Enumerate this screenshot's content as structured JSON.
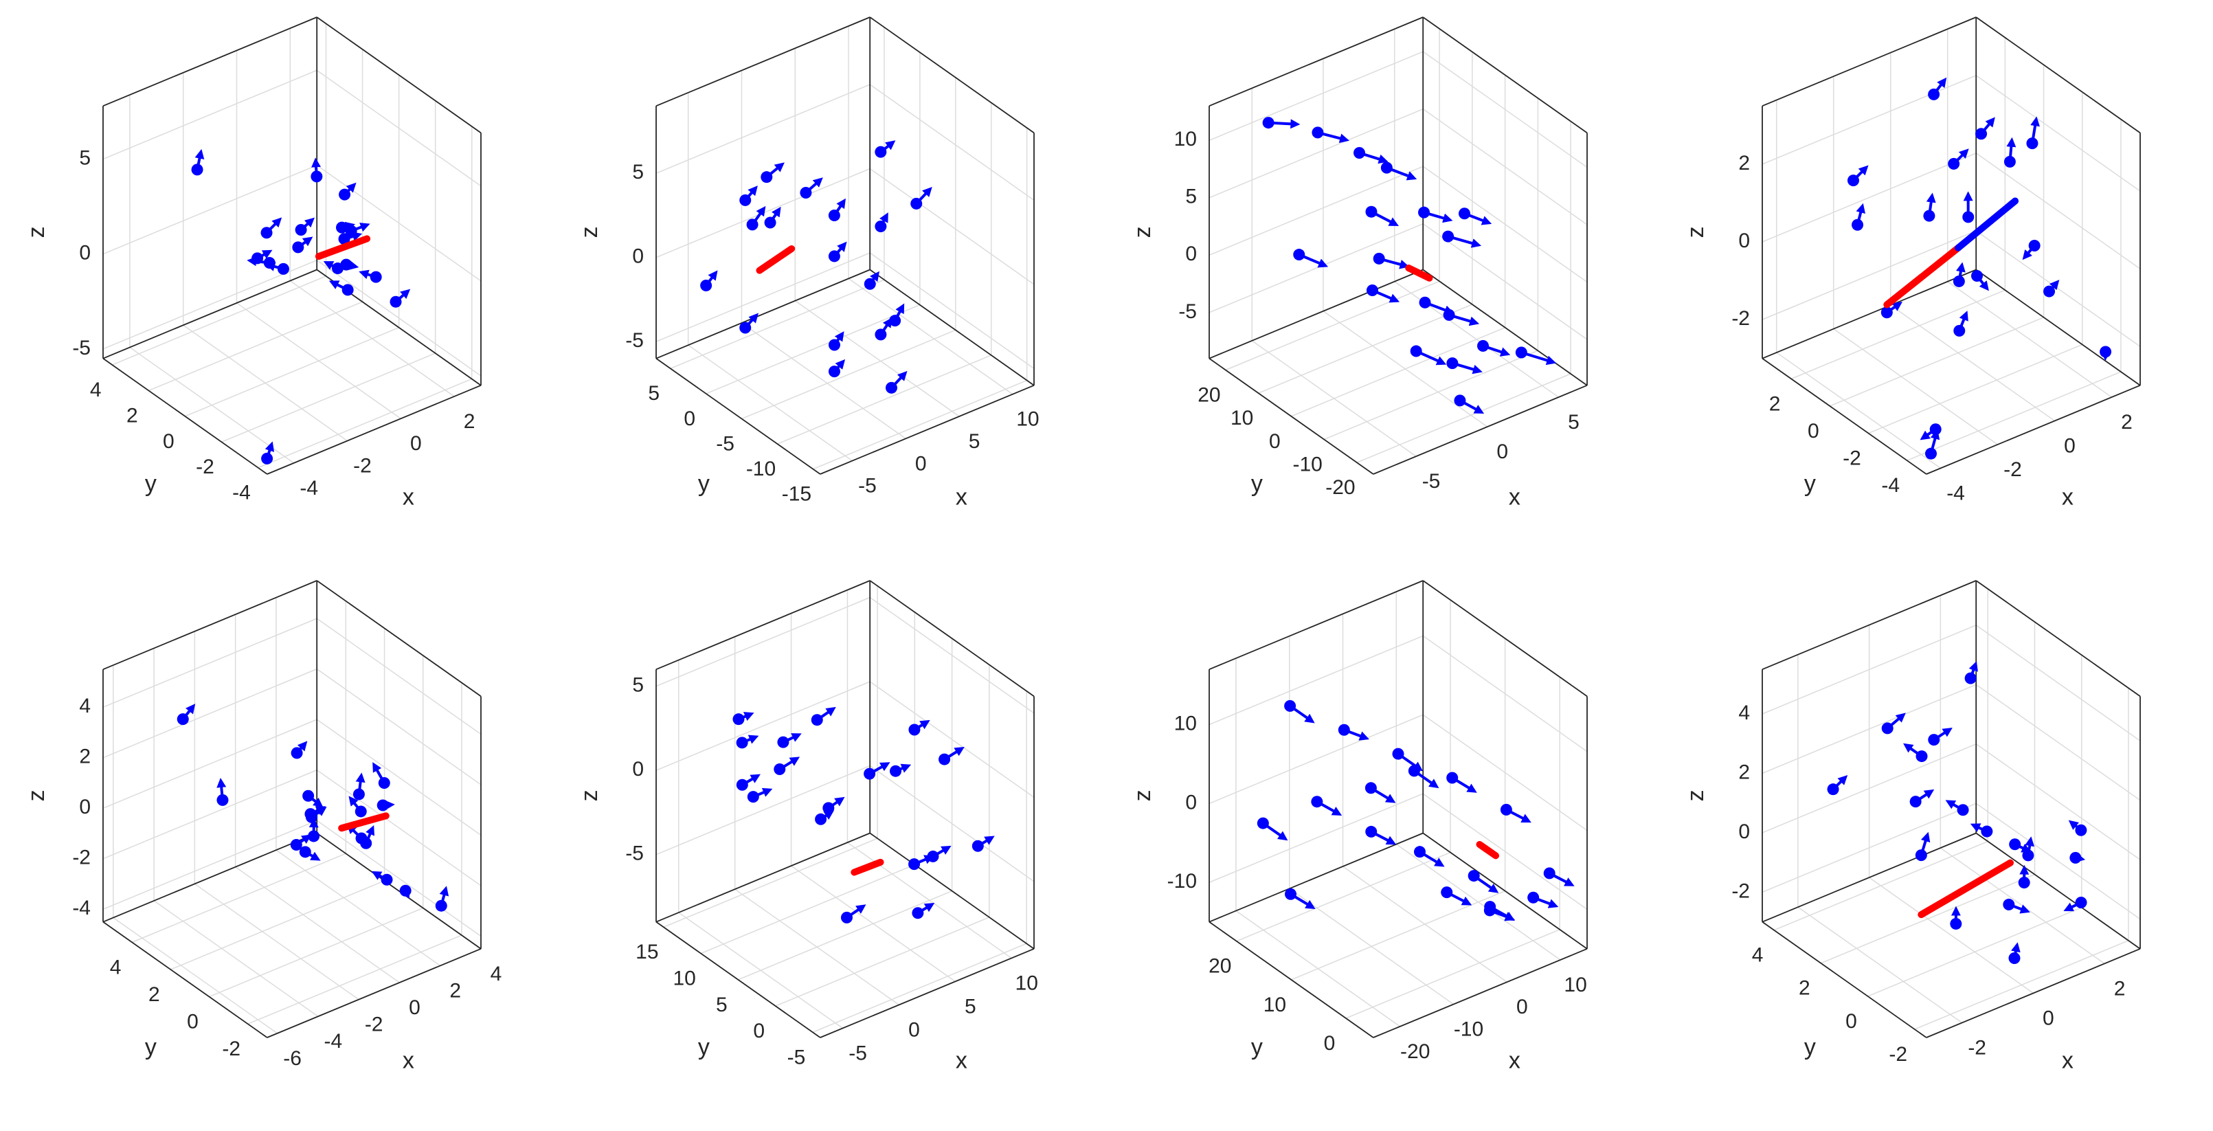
{
  "chart_data": [
    {
      "type": "quiver3d",
      "xlabel": "x",
      "ylabel": "y",
      "zlabel": "z",
      "color": "#0000ff",
      "grid": true,
      "xlim": [
        -5,
        3
      ],
      "ylim": [
        -4.5,
        4.5
      ],
      "zlim": [
        -5.5,
        7.8
      ],
      "xticks": [
        -4,
        -2,
        0,
        2
      ],
      "yticks": [
        -4,
        -2,
        0,
        2,
        4
      ],
      "zticks": [
        -5,
        0,
        5
      ],
      "x": [
        -0.5,
        0.3,
        -1.2,
        1.0,
        0.2,
        -0.8,
        1.5,
        -0.3,
        0.6,
        -1.5,
        0.9,
        -0.2,
        1.8,
        -1.0,
        0.4,
        -2.5,
        2.2,
        -4.8
      ],
      "y": [
        0.4,
        -0.6,
        1.1,
        0.2,
        -1.3,
        -0.2,
        0.8,
        1.5,
        -0.9,
        0.5,
        -0.1,
        -1.8,
        -0.5,
        1.9,
        0.7,
        3.0,
        -1.0,
        -4.2
      ],
      "z": [
        0.5,
        -0.4,
        1.2,
        0.8,
        -1.0,
        2.0,
        -0.5,
        -1.5,
        1.6,
        0.2,
        2.8,
        0.9,
        -1.8,
        -0.8,
        3.5,
        4.0,
        -3.0,
        -5.0
      ],
      "u": [
        0.3,
        -0.2,
        0.4,
        0.5,
        -0.3,
        0.2,
        0.6,
        -0.4,
        0.3,
        -0.5,
        0.2,
        0.4,
        -0.3,
        0.3,
        0.1,
        0.2,
        0.3,
        0.3
      ],
      "v": [
        -0.2,
        0.3,
        -0.1,
        0.2,
        0.4,
        -0.3,
        0.1,
        0.2,
        -0.4,
        0.3,
        -0.2,
        0.1,
        0.3,
        -0.2,
        0.2,
        0.1,
        -0.2,
        0.2
      ],
      "w": [
        0.4,
        0.2,
        0.5,
        -0.3,
        0.3,
        0.6,
        -0.2,
        0.3,
        0.4,
        0.2,
        0.5,
        -0.4,
        0.2,
        0.3,
        0.6,
        0.7,
        0.5,
        0.4
      ],
      "segments": [
        {
          "color": "#ff0000",
          "x": [
            0,
            1.6
          ],
          "y": [
            0,
            -0.3
          ],
          "z": [
            0,
            0.2
          ]
        }
      ]
    },
    {
      "type": "quiver3d",
      "xlabel": "x",
      "ylabel": "y",
      "zlabel": "z",
      "color": "#0000ff",
      "grid": true,
      "xlim": [
        -8,
        12
      ],
      "ylim": [
        -16,
        7
      ],
      "zlim": [
        -6,
        9
      ],
      "xticks": [
        -5,
        0,
        5,
        10
      ],
      "yticks": [
        -15,
        -10,
        -5,
        0,
        5
      ],
      "zticks": [
        -5,
        0,
        5
      ],
      "x": [
        -4,
        2,
        5,
        -1,
        7,
        3,
        -3,
        0,
        6,
        9,
        -2,
        4,
        1,
        8,
        -5,
        2,
        5,
        -6
      ],
      "y": [
        -3,
        1,
        -5,
        4,
        -2,
        -8,
        2,
        -6,
        3,
        -4,
        -9,
        0,
        5,
        1,
        -1,
        -11,
        -7,
        3
      ],
      "z": [
        4,
        3,
        2,
        1,
        5,
        -3,
        -4,
        -5,
        0,
        2,
        -2,
        -1,
        3,
        -4,
        5,
        -5,
        -3,
        -1
      ],
      "u": [
        1.0,
        1.2,
        0.8,
        1.1,
        0.9,
        1.0,
        1.2,
        0.7,
        1.0,
        1.1,
        0.9,
        1.0,
        1.2,
        0.8,
        1.0,
        1.1,
        0.9,
        1.0
      ],
      "v": [
        0.3,
        -0.2,
        0.4,
        0.1,
        -0.3,
        0.2,
        0.3,
        -0.1,
        0.2,
        -0.2,
        0.3,
        0.1,
        -0.3,
        0.2,
        0.1,
        -0.2,
        0.3,
        0.2
      ],
      "w": [
        0.4,
        0.5,
        0.3,
        0.6,
        0.4,
        0.5,
        0.3,
        0.4,
        0.5,
        0.6,
        0.3,
        0.4,
        0.5,
        0.3,
        0.4,
        0.6,
        0.5,
        0.4
      ],
      "segments": [
        {
          "color": "#ff0000",
          "x": [
            -3,
            0
          ],
          "y": [
            0,
            0
          ],
          "z": [
            0,
            0.5
          ]
        }
      ]
    },
    {
      "type": "quiver3d",
      "xlabel": "x",
      "ylabel": "y",
      "zlabel": "z",
      "color": "#0000ff",
      "grid": true,
      "xlim": [
        -8,
        7
      ],
      "ylim": [
        -25,
        25
      ],
      "zlim": [
        -9,
        13
      ],
      "xticks": [
        -5,
        0,
        5
      ],
      "yticks": [
        -20,
        -10,
        0,
        10,
        20
      ],
      "zticks": [
        -5,
        0,
        5,
        10
      ],
      "x": [
        -2,
        0,
        1,
        -1,
        2,
        3,
        -3,
        0,
        1,
        -2,
        2,
        4,
        -1,
        0,
        3,
        -4,
        1,
        -5
      ],
      "y": [
        18,
        14,
        10,
        6,
        3,
        0,
        -3,
        -6,
        -9,
        -12,
        -15,
        -18,
        -21,
        8,
        -5,
        15,
        -10,
        20
      ],
      "z": [
        9,
        7,
        6,
        4,
        3,
        1,
        0,
        -2,
        -3,
        -4,
        -5,
        -6,
        -7,
        -1,
        4,
        0,
        -7,
        11
      ],
      "u": [
        1.5,
        1.2,
        1.4,
        1.0,
        1.3,
        1.5,
        1.2,
        1.1,
        1.4,
        1.3,
        1.2,
        1.5,
        1.0,
        1.3,
        1.2,
        1.1,
        1.4,
        1.5
      ],
      "v": [
        -2,
        -2.5,
        -2,
        -3,
        -2,
        -2.5,
        -2,
        -3,
        -2,
        -2.5,
        -2,
        -3,
        -2,
        -2.5,
        -2,
        -3,
        -2,
        -2
      ],
      "w": [
        -1,
        -0.8,
        -1.2,
        -1,
        -0.9,
        -1,
        -1.1,
        -0.8,
        -1,
        -1.2,
        -0.9,
        -1,
        -1.1,
        -0.8,
        -1,
        -0.9,
        -1,
        -0.5
      ],
      "segments": [
        {
          "color": "#ff0000",
          "x": [
            0,
            1
          ],
          "y": [
            -1,
            -3
          ],
          "z": [
            0,
            -1
          ]
        }
      ]
    },
    {
      "type": "quiver3d",
      "xlabel": "x",
      "ylabel": "y",
      "zlabel": "z",
      "color": "#0000ff",
      "grid": true,
      "xlim": [
        -4.5,
        3
      ],
      "ylim": [
        -5,
        3.5
      ],
      "zlim": [
        -3,
        3.5
      ],
      "xticks": [
        -4,
        -2,
        0,
        2
      ],
      "yticks": [
        -4,
        -2,
        0,
        2
      ],
      "zticks": [
        -2,
        0,
        2
      ],
      "x": [
        -3,
        -1,
        0.5,
        2,
        -2,
        1,
        -0.5,
        2.5,
        -3.5,
        0,
        1.5,
        -1.5,
        2.8,
        -2.5,
        0.8,
        -4,
        1.2,
        2.6
      ],
      "y": [
        1,
        -2,
        2,
        -1,
        -3,
        0.5,
        -0.8,
        2.5,
        -4,
        1.5,
        -2.5,
        3,
        -3.5,
        0,
        -1.5,
        -4.5,
        2,
        0
      ],
      "z": [
        2,
        1.5,
        2.8,
        -0.5,
        0.5,
        -1.5,
        -2,
        1,
        -2.5,
        0,
        -1,
        -0.3,
        -2.6,
        -1.2,
        2.2,
        -2.8,
        0.8,
        1.6
      ],
      "u": [
        0.3,
        0.2,
        0.3,
        -0.2,
        0.3,
        0.2,
        0.3,
        0.2,
        -0.3,
        0.3,
        0.2,
        0.3,
        0.2,
        0.3,
        0.2,
        0.4,
        0.3,
        0.2
      ],
      "v": [
        -0.2,
        0.3,
        -0.1,
        0.2,
        0.3,
        -0.2,
        0.1,
        -0.3,
        0.2,
        0.3,
        -0.1,
        0.2,
        0.3,
        -0.2,
        0.2,
        0.3,
        -0.2,
        0.1
      ],
      "w": [
        0.3,
        0.4,
        0.3,
        -0.3,
        0.2,
        -0.3,
        0.3,
        0.4,
        -0.2,
        0.3,
        0.2,
        0.3,
        -0.3,
        0.2,
        0.4,
        0.3,
        0.3,
        0.5
      ],
      "segments": [
        {
          "color": "#ff0000",
          "x": [
            -2.5,
            0
          ],
          "y": [
            0,
            0
          ],
          "z": [
            -1,
            -0.3
          ]
        },
        {
          "color": "#0000ff",
          "x": [
            0,
            2
          ],
          "y": [
            0,
            0
          ],
          "z": [
            -0.3,
            0.3
          ]
        }
      ]
    },
    {
      "type": "quiver3d",
      "xlabel": "x",
      "ylabel": "y",
      "zlabel": "z",
      "color": "#0000ff",
      "grid": true,
      "xlim": [
        -6.5,
        4
      ],
      "ylim": [
        -3,
        5.5
      ],
      "zlim": [
        -4.5,
        5.5
      ],
      "xticks": [
        -6,
        -4,
        -2,
        0,
        2,
        4
      ],
      "yticks": [
        -2,
        0,
        2,
        4
      ],
      "zticks": [
        -4,
        -2,
        0,
        2,
        4
      ],
      "x": [
        -1,
        0.5,
        -0.5,
        1.2,
        0,
        -1.5,
        1.8,
        0.8,
        -0.3,
        2.5,
        -2,
        1,
        0.2,
        -0.8,
        2,
        -3,
        -4,
        3
      ],
      "y": [
        0.5,
        -0.5,
        1.2,
        0,
        -1,
        0.3,
        1,
        -1.5,
        2,
        0.5,
        -0.5,
        2.5,
        -2,
        1.5,
        -1.2,
        3,
        4,
        -2
      ],
      "z": [
        0.5,
        -0.3,
        0.8,
        -1,
        1.2,
        -0.6,
        0.2,
        -1.5,
        2,
        -0.2,
        1.5,
        -2,
        2.8,
        -1.2,
        -2.5,
        0.5,
        3.5,
        -3
      ],
      "u": [
        0.4,
        -0.3,
        0.3,
        0.5,
        -0.2,
        0.4,
        0.3,
        -0.3,
        0.2,
        0.5,
        0.3,
        0.2,
        -0.2,
        0.4,
        0.3,
        0.2,
        0.3,
        0.4
      ],
      "v": [
        -0.2,
        0.3,
        -0.3,
        0.2,
        0.3,
        -0.2,
        0.2,
        0.3,
        -0.2,
        0.1,
        -0.3,
        0.2,
        0.3,
        -0.2,
        0.2,
        0.3,
        -0.2,
        0.2
      ],
      "w": [
        0.3,
        0.4,
        -0.3,
        0.3,
        0.4,
        -0.3,
        0.5,
        0.2,
        0.4,
        -0.2,
        0.3,
        0.4,
        0.6,
        0.3,
        -0.4,
        0.5,
        0.5,
        0.4
      ],
      "segments": [
        {
          "color": "#ff0000",
          "x": [
            0,
            1.8
          ],
          "y": [
            0,
            -0.4
          ],
          "z": [
            0,
            0.1
          ]
        }
      ]
    },
    {
      "type": "quiver3d",
      "xlabel": "x",
      "ylabel": "y",
      "zlabel": "z",
      "color": "#0000ff",
      "grid": true,
      "xlim": [
        -7,
        12
      ],
      "ylim": [
        -6,
        16
      ],
      "zlim": [
        -9,
        6
      ],
      "xticks": [
        -5,
        0,
        5,
        10
      ],
      "yticks": [
        -5,
        0,
        5,
        10,
        15
      ],
      "zticks": [
        -5,
        0,
        5
      ],
      "x": [
        -3,
        2,
        5,
        0,
        8,
        -2,
        4,
        1,
        7,
        10,
        -4,
        3,
        6,
        -1,
        9,
        0,
        5,
        -5
      ],
      "y": [
        5,
        8,
        2,
        10,
        4,
        12,
        -2,
        6,
        0,
        3,
        9,
        -4,
        7,
        14,
        -3,
        1,
        11,
        6
      ],
      "z": [
        4,
        3,
        1,
        0,
        2,
        -1,
        -3,
        -2,
        -4,
        0,
        3,
        -5,
        -1,
        2,
        -3,
        -6,
        -4,
        1
      ],
      "u": [
        1,
        1.2,
        0.8,
        1.1,
        0.9,
        1.0,
        1.2,
        0.7,
        1.0,
        1.1,
        0.9,
        1.0,
        1.2,
        0.8,
        1.0,
        1.1,
        0.9,
        1.0
      ],
      "v": [
        -0.5,
        -0.3,
        -0.4,
        -0.6,
        -0.3,
        -0.5,
        -0.4,
        -0.3,
        -0.5,
        -0.6,
        -0.4,
        -0.3,
        -0.5,
        -0.4,
        -0.3,
        -0.5,
        -0.4,
        -0.6
      ],
      "w": [
        0.3,
        0.4,
        0.2,
        0.5,
        0.3,
        0.4,
        0.2,
        0.3,
        0.4,
        0.5,
        0.2,
        0.3,
        0.4,
        0.2,
        0.3,
        0.5,
        0.4,
        0.3
      ],
      "segments": [
        {
          "color": "#ff0000",
          "x": [
            0,
            2
          ],
          "y": [
            0,
            -0.5
          ],
          "z": [
            -3,
            -2.8
          ]
        }
      ]
    },
    {
      "type": "quiver3d",
      "xlabel": "x",
      "ylabel": "y",
      "zlabel": "z",
      "color": "#0000ff",
      "grid": true,
      "xlim": [
        -25,
        15
      ],
      "ylim": [
        -5,
        25
      ],
      "zlim": [
        -15,
        17
      ],
      "xticks": [
        -20,
        -10,
        0,
        10
      ],
      "yticks": [
        0,
        10,
        20
      ],
      "zticks": [
        -10,
        0,
        10
      ],
      "x": [
        -15,
        -10,
        -5,
        0,
        5,
        -12,
        -8,
        -3,
        2,
        8,
        -18,
        -6,
        0,
        4,
        10,
        -20,
        -2,
        6
      ],
      "y": [
        20,
        15,
        10,
        5,
        0,
        18,
        12,
        8,
        3,
        -2,
        22,
        14,
        6,
        2,
        -3,
        15,
        10,
        4
      ],
      "z": [
        12,
        10,
        8,
        6,
        3,
        0,
        -2,
        -4,
        -6,
        -8,
        -3,
        2,
        -9,
        -10,
        -5,
        -8,
        5,
        -12
      ],
      "u": [
        2,
        2.5,
        2,
        3,
        2,
        2.5,
        2,
        3,
        2,
        2.5,
        2,
        3,
        2,
        2.5,
        2,
        3,
        2,
        2.5
      ],
      "v": [
        -2,
        -1.5,
        -2,
        -1,
        -2,
        -1.5,
        -2,
        -1,
        -2,
        -1.5,
        -2,
        -1,
        -2,
        -1.5,
        -2,
        -1,
        -2,
        -1.5
      ],
      "w": [
        -1.5,
        -1,
        -1.5,
        -2,
        -1,
        -1.5,
        -1,
        -2,
        -1.5,
        -1,
        -1.5,
        -2,
        -1,
        -1.5,
        -1,
        -2,
        -1.5,
        -1
      ],
      "segments": [
        {
          "color": "#ff0000",
          "x": [
            0,
            2
          ],
          "y": [
            0,
            -1
          ],
          "z": [
            0,
            -1.5
          ]
        }
      ]
    },
    {
      "type": "quiver3d",
      "xlabel": "x",
      "ylabel": "y",
      "zlabel": "z",
      "color": "#0000ff",
      "grid": true,
      "xlim": [
        -3,
        3
      ],
      "ylim": [
        -2.5,
        4.5
      ],
      "zlim": [
        -3,
        5.5
      ],
      "xticks": [
        -2,
        0,
        2
      ],
      "yticks": [
        -2,
        0,
        2,
        4
      ],
      "zticks": [
        -2,
        0,
        2,
        4
      ],
      "x": [
        -1,
        0,
        0.8,
        1.5,
        -0.5,
        0.3,
        1.2,
        -1.5,
        2,
        0.5,
        -0.2,
        1,
        -2,
        2.5,
        0,
        1.8,
        -1,
        0.6
      ],
      "y": [
        1,
        0.5,
        -0.5,
        0,
        1.5,
        -1,
        2,
        0,
        -1.5,
        2.5,
        -2,
        1,
        3,
        -0.5,
        0.8,
        -1.8,
        2.2,
        -1.2
      ],
      "z": [
        2,
        1.5,
        0.5,
        -0.5,
        3,
        -1,
        4.5,
        1,
        -1.5,
        2.5,
        -2,
        0,
        1.8,
        -0.8,
        -2.5,
        1.2,
        3.8,
        -0.3
      ],
      "u": [
        0.3,
        -0.2,
        0.3,
        0.2,
        -0.3,
        0.3,
        0.2,
        0.3,
        -0.2,
        0.3,
        0.2,
        -0.3,
        0.2,
        0.3,
        0.2,
        -0.2,
        0.3,
        0.2
      ],
      "v": [
        -0.2,
        0.3,
        -0.1,
        0.2,
        0.2,
        -0.3,
        0.1,
        0.2,
        0.3,
        -0.2,
        0.2,
        0.1,
        -0.2,
        0.2,
        0.3,
        0.1,
        -0.2,
        0.3
      ],
      "w": [
        0.3,
        0.2,
        -0.3,
        0.3,
        0.4,
        -0.2,
        0.3,
        0.4,
        -0.3,
        0.3,
        0.2,
        0.3,
        0.4,
        -0.3,
        0.2,
        0.3,
        0.4,
        0.2
      ],
      "segments": [
        {
          "color": "#ff0000",
          "x": [
            -1.5,
            1
          ],
          "y": [
            0,
            0
          ],
          "z": [
            -1,
            -0.5
          ]
        }
      ]
    }
  ]
}
